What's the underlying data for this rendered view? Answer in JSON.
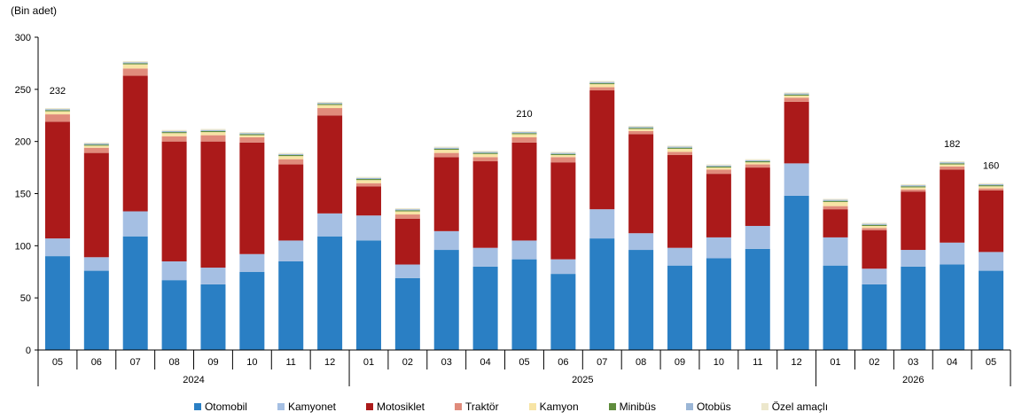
{
  "chart_data": {
    "type": "bar",
    "stacked": true,
    "unit_label": "(Bin adet)",
    "ylim": [
      0,
      300
    ],
    "yticks": [
      0,
      50,
      100,
      150,
      200,
      250,
      300
    ],
    "categories": [
      "05",
      "06",
      "07",
      "08",
      "09",
      "10",
      "11",
      "12",
      "01",
      "02",
      "03",
      "04",
      "05",
      "06",
      "07",
      "08",
      "09",
      "10",
      "11",
      "12",
      "01",
      "02",
      "03",
      "04",
      "05"
    ],
    "groups": [
      {
        "label": "2024",
        "count": 8
      },
      {
        "label": "2025",
        "count": 12
      },
      {
        "label": "2026",
        "count": 5
      }
    ],
    "series": [
      {
        "name": "Otomobil",
        "color": "#2a7fc4",
        "values": [
          90,
          76,
          109,
          67,
          63,
          75,
          85,
          109,
          105,
          69,
          96,
          80,
          87,
          73,
          107,
          96,
          81,
          88,
          97,
          148,
          81,
          63,
          80,
          82,
          76
        ]
      },
      {
        "name": "Kamyonet",
        "color": "#a5bfe3",
        "values": [
          17,
          13,
          24,
          18,
          16,
          17,
          20,
          22,
          24,
          13,
          18,
          18,
          18,
          14,
          28,
          16,
          17,
          20,
          22,
          31,
          27,
          15,
          16,
          21,
          18
        ]
      },
      {
        "name": "Motosiklet",
        "color": "#ab1a1a",
        "values": [
          112,
          100,
          130,
          115,
          121,
          107,
          73,
          94,
          28,
          44,
          71,
          83,
          94,
          93,
          114,
          95,
          89,
          61,
          56,
          59,
          27,
          37,
          56,
          70,
          59
        ]
      },
      {
        "name": "Traktör",
        "color": "#e08b7b",
        "values": [
          7,
          5,
          7,
          5,
          6,
          5,
          5,
          7,
          3,
          4,
          4,
          4,
          5,
          5,
          3,
          3,
          3,
          4,
          3,
          4,
          3,
          2,
          2,
          3,
          2
        ]
      },
      {
        "name": "Kamyon",
        "color": "#f7e4a5",
        "values": [
          3,
          2,
          4,
          3,
          3,
          2,
          3,
          3,
          3,
          3,
          3,
          3,
          3,
          2,
          3,
          2,
          3,
          2,
          2,
          2,
          4,
          2,
          2,
          2,
          2
        ]
      },
      {
        "name": "Minibüs",
        "color": "#5f8c3c",
        "values": [
          1,
          1,
          1,
          1,
          1,
          1,
          1,
          1,
          1,
          1,
          1,
          1,
          1,
          1,
          1,
          1,
          1,
          1,
          1,
          1,
          1,
          1,
          1,
          1,
          1
        ]
      },
      {
        "name": "Otobüs",
        "color": "#9bb6d6",
        "values": [
          1,
          1,
          1,
          1,
          1,
          1,
          1,
          1,
          1,
          1,
          1,
          1,
          1,
          1,
          1,
          1,
          1,
          1,
          1,
          1,
          1,
          1,
          1,
          1,
          1
        ]
      },
      {
        "name": "Özel amaçlı",
        "color": "#ece7cc",
        "values": [
          1,
          1,
          1,
          1,
          1,
          1,
          1,
          1,
          1,
          1,
          1,
          1,
          1,
          1,
          1,
          1,
          1,
          1,
          1,
          1,
          1,
          1,
          1,
          1,
          1
        ]
      }
    ],
    "data_labels": [
      {
        "index": 0,
        "text": "232"
      },
      {
        "index": 12,
        "text": "210"
      },
      {
        "index": 23,
        "text": "182"
      },
      {
        "index": 24,
        "text": "160"
      }
    ],
    "grid": false,
    "legend_position": "bottom"
  }
}
